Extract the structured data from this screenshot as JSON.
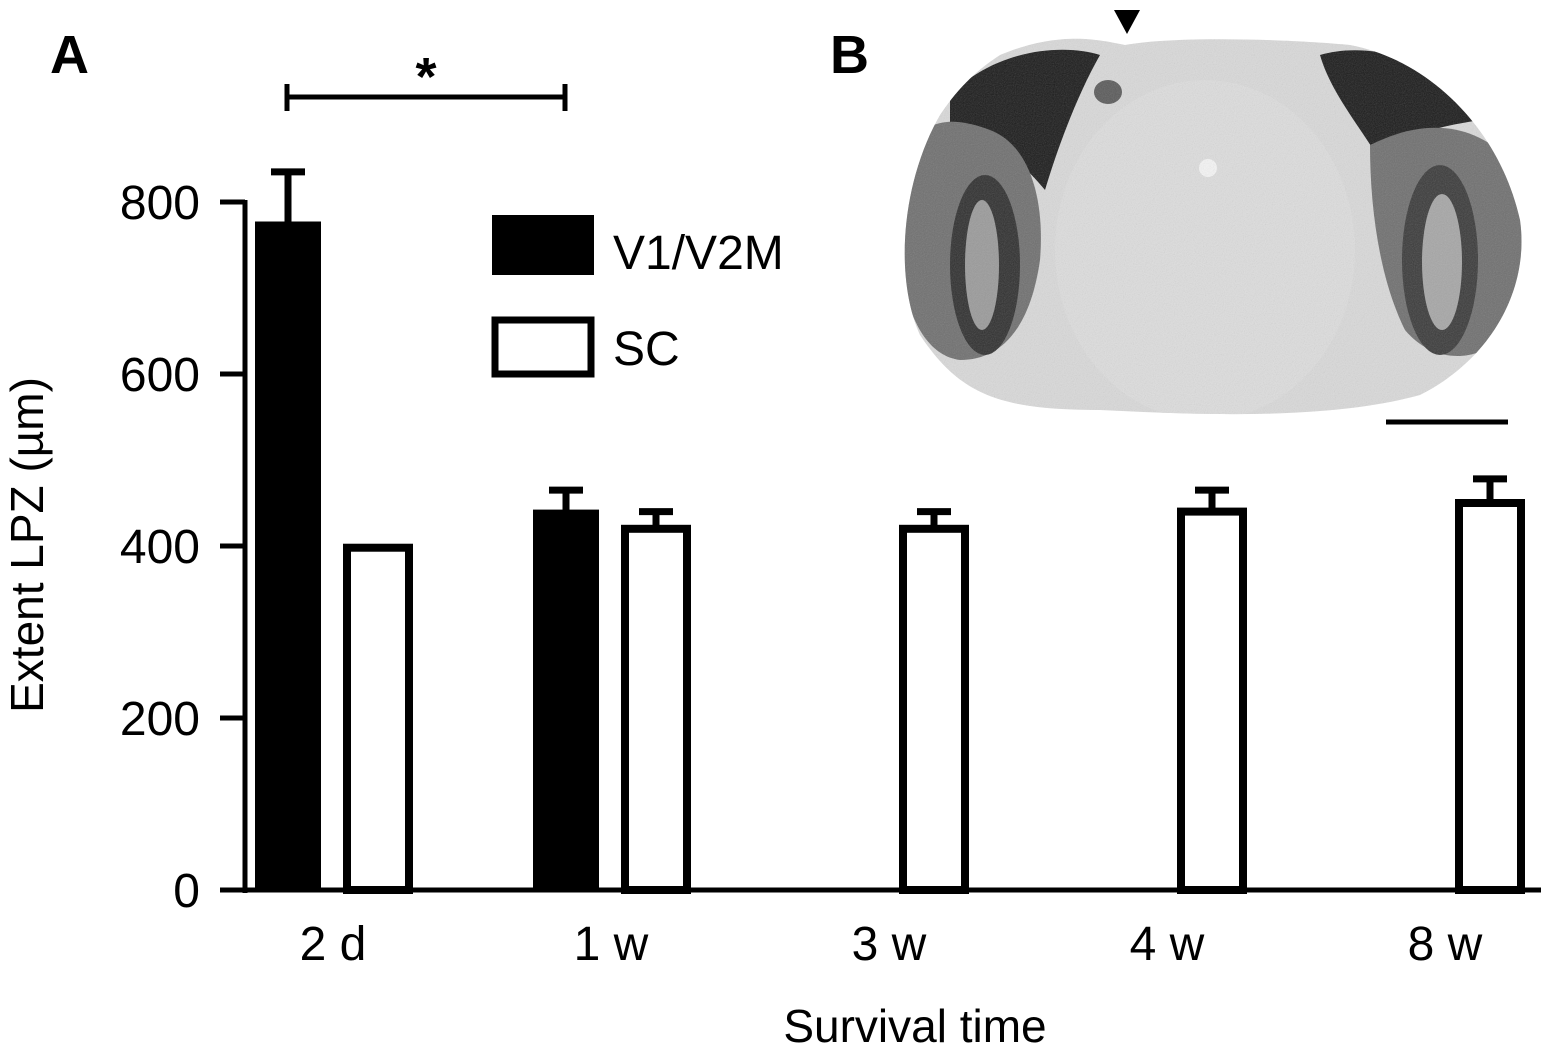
{
  "panel_labels": {
    "a": "A",
    "b": "B"
  },
  "significance_marker": "*",
  "chart_data": {
    "type": "bar",
    "title": "",
    "xlabel": "Survival time",
    "ylabel": "Extent LPZ (µm)",
    "ylim": [
      0,
      800
    ],
    "yticks": [
      0,
      200,
      400,
      600,
      800
    ],
    "categories": [
      "2 d",
      "1 w",
      "3 w",
      "4 w",
      "8 w"
    ],
    "series": [
      {
        "name": "V1/V2M",
        "color": "#000000",
        "values": [
          775,
          440,
          null,
          null,
          null
        ],
        "errors": [
          60,
          25,
          null,
          null,
          null
        ]
      },
      {
        "name": "SC",
        "color": "#ffffff",
        "values": [
          398,
          420,
          420,
          440,
          450
        ],
        "errors": [
          0,
          20,
          20,
          25,
          28
        ]
      }
    ],
    "legend_position": "top-center",
    "grid": false,
    "annotations": [
      {
        "type": "significance-bracket",
        "between": [
          "2 d",
          "1 w"
        ],
        "series": "V1/V2M",
        "label": "*"
      }
    ]
  },
  "inset": {
    "description_icon": "coronal-brain-section-image",
    "arrowhead_icon": "arrowhead-down-icon",
    "scale_bar_icon": "scale-bar-icon"
  }
}
